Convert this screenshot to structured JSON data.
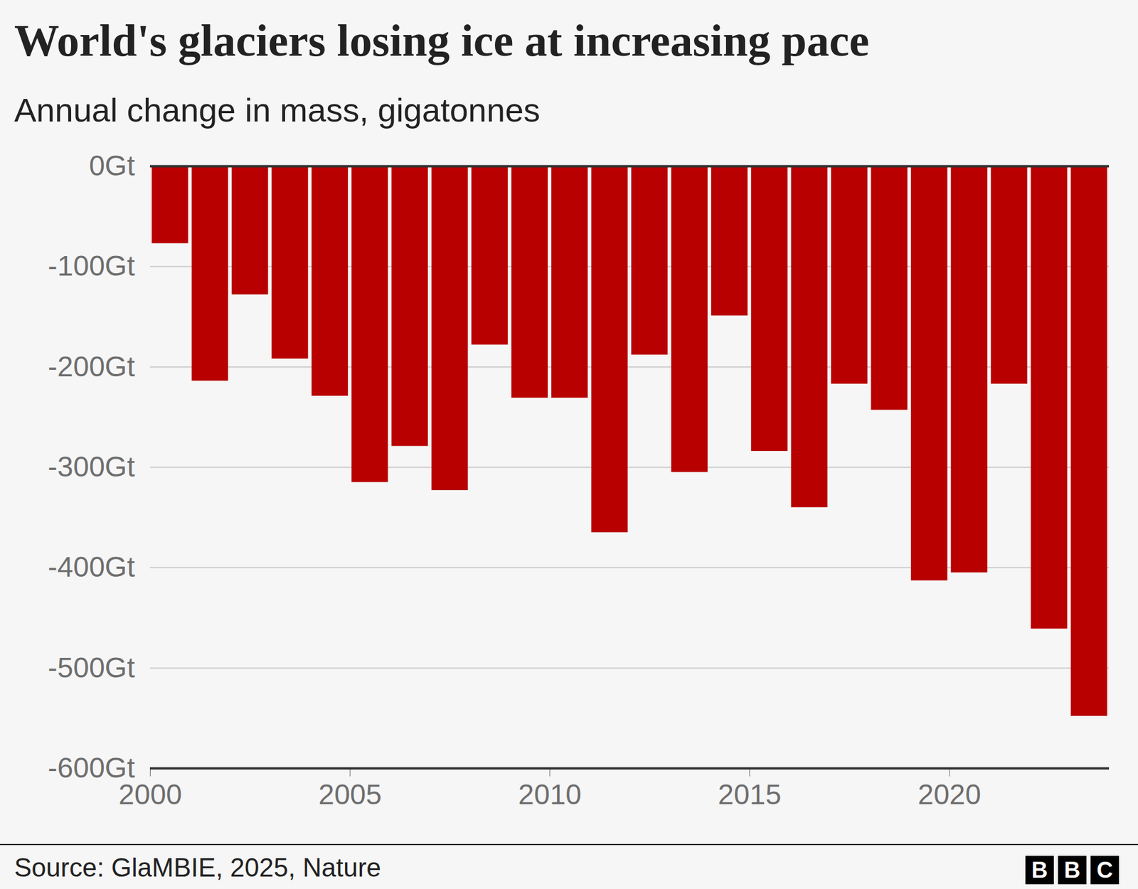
{
  "chart_data": {
    "type": "bar",
    "title": "World's glaciers losing ice at increasing pace",
    "subtitle": "Annual change in mass, gigatonnes",
    "source": "Source: GlaMBIE, 2025, Nature",
    "credit": "BBC",
    "x": [
      2000,
      2001,
      2002,
      2003,
      2004,
      2005,
      2006,
      2007,
      2008,
      2009,
      2010,
      2011,
      2012,
      2013,
      2014,
      2015,
      2016,
      2017,
      2018,
      2019,
      2020,
      2021,
      2022,
      2023
    ],
    "values": [
      -77,
      -214,
      -128,
      -192,
      -229,
      -315,
      -279,
      -323,
      -178,
      -231,
      -231,
      -365,
      -188,
      -305,
      -149,
      -284,
      -340,
      -217,
      -243,
      -413,
      -405,
      -217,
      -461,
      -548
    ],
    "color": "#b80000",
    "xlim": [
      2000,
      2024
    ],
    "xticks": [
      2000,
      2005,
      2010,
      2015,
      2020
    ],
    "ylim": [
      -600,
      0
    ],
    "yticks": [
      {
        "value": -600,
        "label": "-600Gt"
      },
      {
        "value": -500,
        "label": "-500Gt"
      },
      {
        "value": -400,
        "label": "-400Gt"
      },
      {
        "value": -300,
        "label": "-300Gt"
      },
      {
        "value": -200,
        "label": "-200Gt"
      },
      {
        "value": -100,
        "label": "-100Gt"
      },
      {
        "value": 0,
        "label": "0Gt"
      }
    ],
    "grid": true
  }
}
